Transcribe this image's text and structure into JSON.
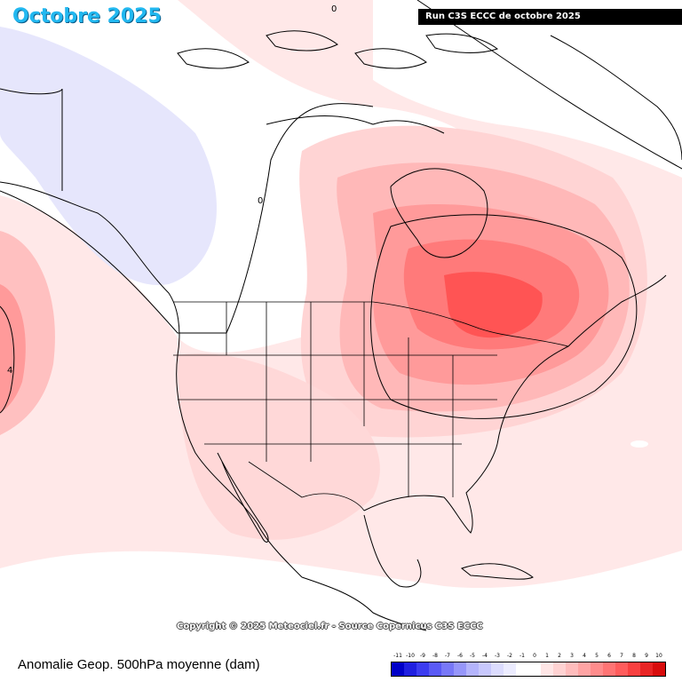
{
  "header": {
    "month_title": "Octobre 2025",
    "run_label": "Run C3S ECCC de octobre 2025"
  },
  "map": {
    "contour_labels": [
      "0",
      "0",
      "4"
    ],
    "copyright": "Copyright © 2025 Meteociel.fr - Source Copernicus C3S ECCC"
  },
  "footer": {
    "caption": "Anomalie Geop. 500hPa moyenne (dam)"
  },
  "legend": {
    "ticks": [
      "-11",
      "-10",
      "-9",
      "-8",
      "-7",
      "-6",
      "-5",
      "-4",
      "-3",
      "-2",
      "-1",
      "0",
      "1",
      "2",
      "3",
      "4",
      "5",
      "6",
      "7",
      "8",
      "9",
      "10"
    ],
    "colors": [
      "#0000c8",
      "#1f1fe0",
      "#3c3cf0",
      "#5a5af5",
      "#7878f8",
      "#9696fa",
      "#b4b4fc",
      "#c8c8fd",
      "#dcdcfe",
      "#ececff",
      "#ffffff",
      "#ffffff",
      "#ffe6e6",
      "#ffd2d2",
      "#ffbcbc",
      "#ffa4a4",
      "#ff8c8c",
      "#ff7474",
      "#ff5c5c",
      "#f84040",
      "#e82424",
      "#d80c0c"
    ]
  }
}
